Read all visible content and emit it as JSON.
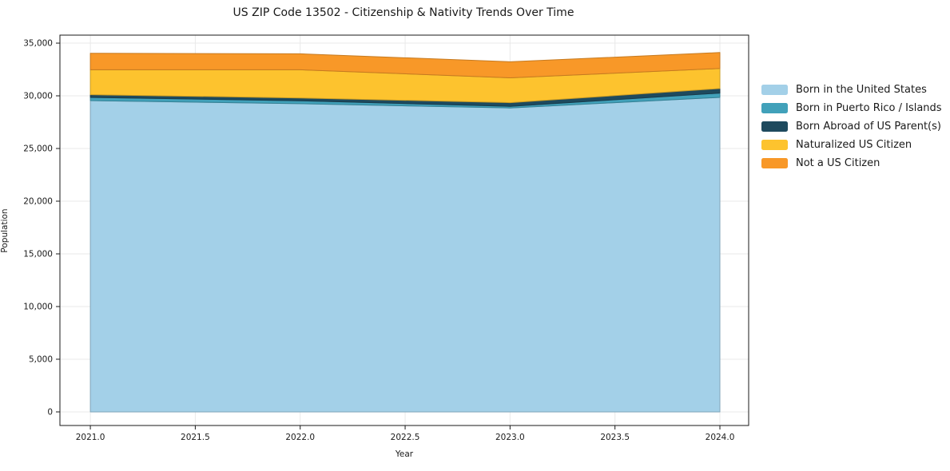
{
  "title": "US ZIP Code 13502 - Citizenship & Nativity Trends Over Time",
  "chart_data": {
    "type": "area",
    "stacked": true,
    "title": "US ZIP Code 13502 - Citizenship & Nativity Trends Over Time",
    "xlabel": "Year",
    "ylabel": "Population",
    "x": [
      2021,
      2022,
      2023,
      2024
    ],
    "series": [
      {
        "name": "Born in the United States",
        "color": "#A3D0E8",
        "values": [
          29550,
          29250,
          28850,
          29850
        ]
      },
      {
        "name": "Born in Puerto Rico / Islands",
        "color": "#41A1BA",
        "values": [
          300,
          280,
          150,
          410
        ]
      },
      {
        "name": "Born Abroad of US Parent(s)",
        "color": "#1E4A5E",
        "values": [
          260,
          270,
          350,
          430
        ]
      },
      {
        "name": "Naturalized US Citizen",
        "color": "#FDC32E",
        "values": [
          2360,
          2670,
          2360,
          1900
        ]
      },
      {
        "name": "Not a US Citizen",
        "color": "#F89828",
        "values": [
          1570,
          1520,
          1520,
          1520
        ]
      }
    ],
    "stack_totals": [
      34040,
      33990,
      33230,
      34110
    ],
    "xtick_values": [
      2021.0,
      2021.5,
      2022.0,
      2022.5,
      2023.0,
      2023.5,
      2024.0
    ],
    "xtick_labels": [
      "2021.0",
      "2021.5",
      "2022.0",
      "2022.5",
      "2023.0",
      "2023.5",
      "2024.0"
    ],
    "ytick_values": [
      0,
      5000,
      10000,
      15000,
      20000,
      25000,
      30000,
      35000
    ],
    "ytick_labels": [
      "0",
      "5,000",
      "10,000",
      "15,000",
      "20,000",
      "25,000",
      "30,000",
      "35,000"
    ],
    "xlim": [
      2020.855,
      2024.137
    ],
    "ylim": [
      -1290,
      35760
    ],
    "grid": true,
    "legend_position": "right of plot, top",
    "colors": {
      "spine": "#1a1a1a",
      "grid": "#e9e9e9",
      "text": "#1a1a1a",
      "background": "#ffffff"
    }
  }
}
